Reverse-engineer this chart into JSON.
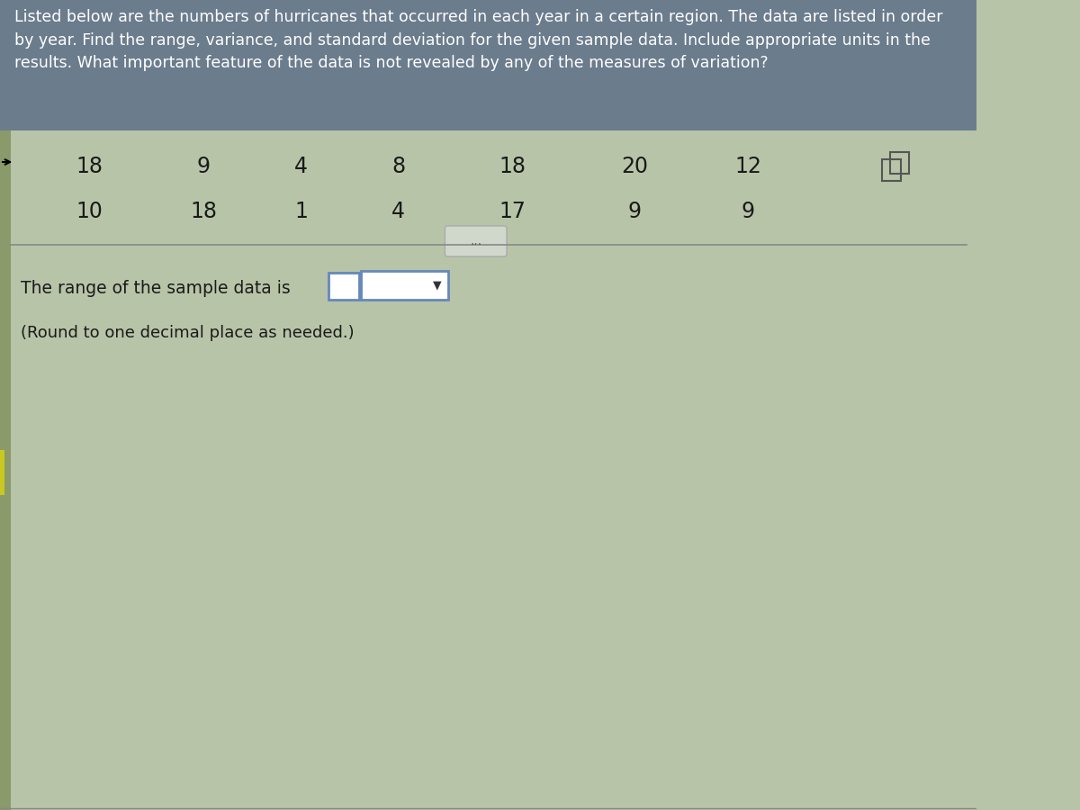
{
  "background_color": "#b8c4a8",
  "header_bg": "#5a6a7a",
  "header_text_color": "#ffffff",
  "content_bg": "#c8d4b8",
  "title_text": "Listed below are the numbers of hurricanes that occurred in each year in a certain region. The data are listed in order\nby year. Find the range, variance, and standard deviation for the given sample data. Include appropriate units in the\nresults. What important feature of the data is not revealed by any of the measures of variation?",
  "data_row1": [
    "18",
    "9",
    "4",
    "8",
    "18",
    "20",
    "12",
    ""
  ],
  "data_row2": [
    "10",
    "18",
    "1",
    "4",
    "17",
    "9",
    "9",
    ""
  ],
  "question_text": "The range of the sample data is",
  "subtext": "(Round to one decimal place as needed.)",
  "left_border_color": "#8a9a6a",
  "text_color": "#1a1a1a",
  "separator_line_color": "#888888",
  "input_box_color": "#6688bb",
  "dropdown_color": "#6688bb",
  "small_icon_color": "#555555"
}
